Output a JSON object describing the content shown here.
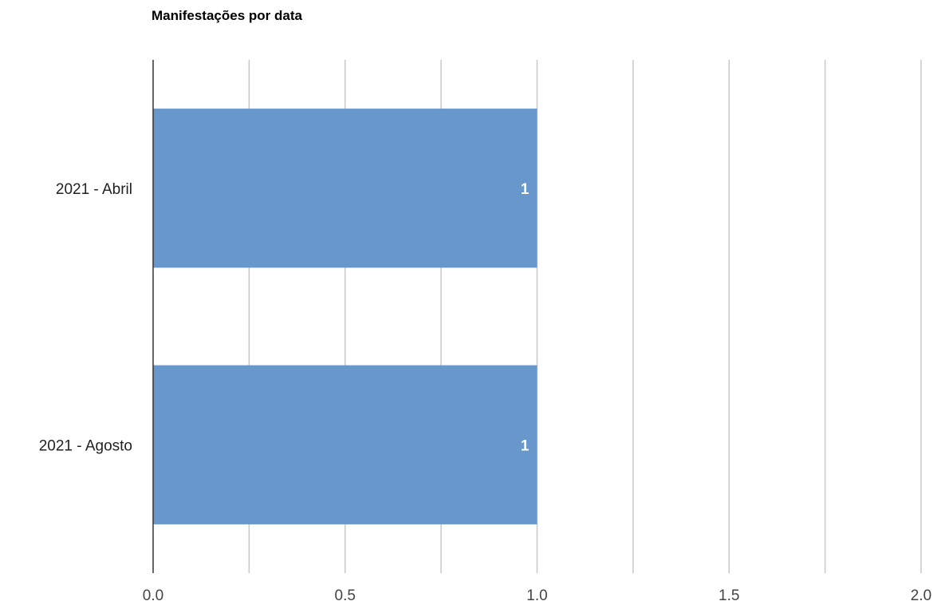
{
  "chart_data": {
    "type": "bar",
    "orientation": "horizontal",
    "title": "Manifestações por data",
    "categories": [
      "2021 - Abril",
      "2021 - Agosto"
    ],
    "values": [
      1,
      1
    ],
    "data_labels": [
      "1",
      "1"
    ],
    "xlim": [
      0,
      2
    ],
    "x_ticks": [
      0.0,
      0.5,
      1.0,
      1.5,
      2.0
    ],
    "x_tick_labels": [
      "0.0",
      "0.5",
      "1.0",
      "1.5",
      "2.0"
    ],
    "minor_gridlines": true,
    "grid": true,
    "legend": "none",
    "colors": {
      "bar": "#6897cc",
      "gridline": "#c8c8c8",
      "axis": "#333333"
    }
  }
}
